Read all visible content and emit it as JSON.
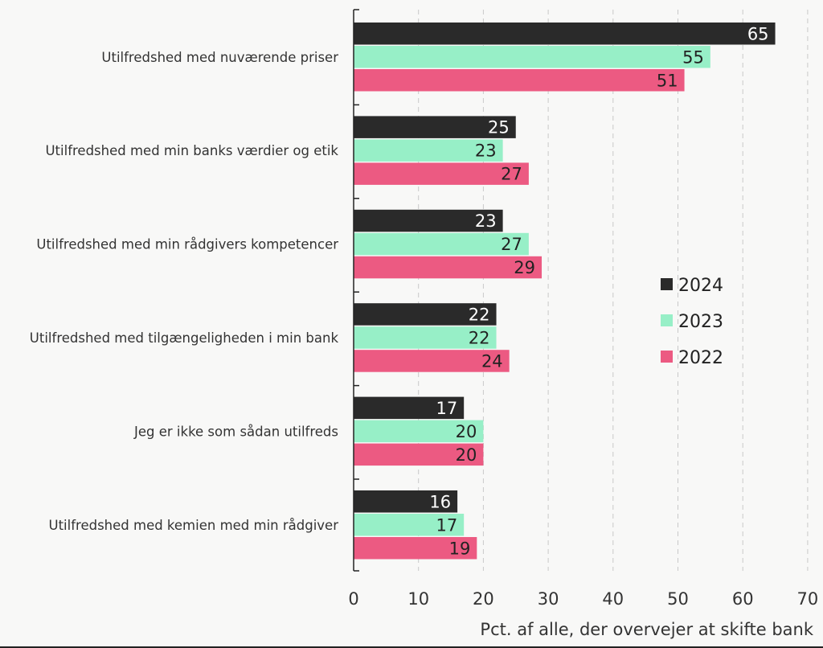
{
  "chart_data": {
    "type": "bar",
    "orientation": "horizontal",
    "categories": [
      "Utilfredshed med nuværende priser",
      "Utilfredshed med min banks værdier og etik",
      "Utilfredshed med min rådgivers kompetencer",
      "Utilfredshed med tilgængeligheden i min bank",
      "Jeg er ikke som sådan utilfreds",
      "Utilfredshed med kemien med min rådgiver"
    ],
    "series": [
      {
        "name": "2024",
        "color": "#2a2a2a",
        "label_color": "#ffffff",
        "values": [
          65,
          25,
          23,
          22,
          17,
          16
        ]
      },
      {
        "name": "2023",
        "color": "#97efc7",
        "label_color": "#222222",
        "values": [
          55,
          23,
          27,
          22,
          20,
          17
        ]
      },
      {
        "name": "2022",
        "color": "#ec5a82",
        "label_color": "#222222",
        "values": [
          51,
          27,
          29,
          24,
          20,
          19
        ]
      }
    ],
    "xlim": [
      0,
      70
    ],
    "xticks": [
      0,
      10,
      20,
      30,
      40,
      50,
      60,
      70
    ],
    "xlabel": "Pct. af alle, der overvejer at skifte bank",
    "grid": "vertical-dashed",
    "legend_position": "right-middle",
    "data_labels": true
  }
}
